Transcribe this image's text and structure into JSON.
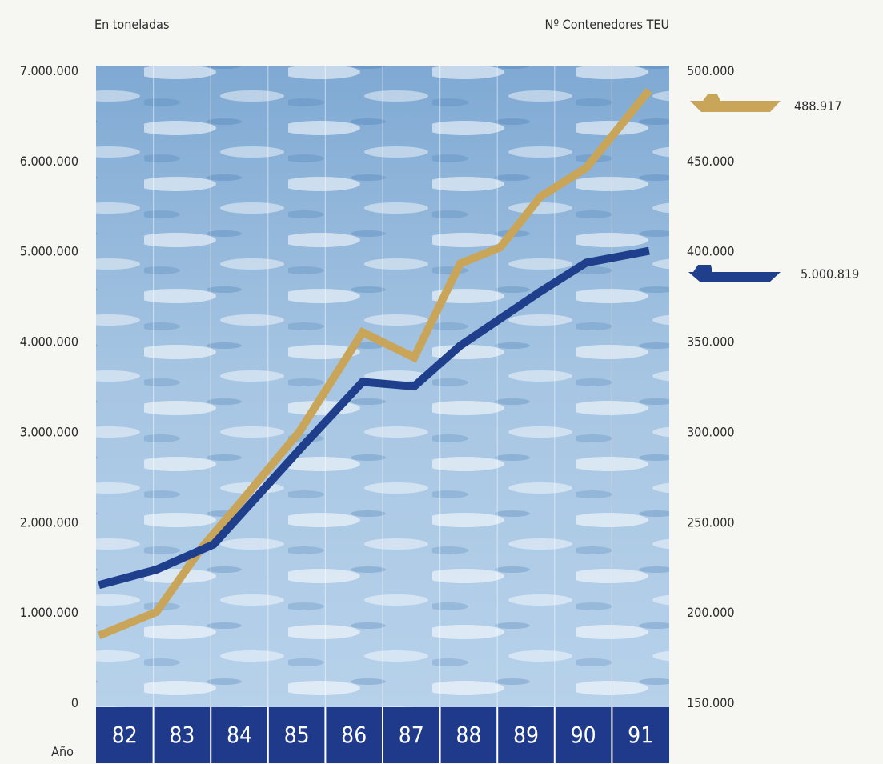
{
  "chart_data": {
    "type": "line",
    "left_axis_label": "En toneladas",
    "right_axis_label": "Nº Contenedores TEU",
    "x_label": "Año",
    "categories": [
      "82",
      "83",
      "84",
      "85",
      "86",
      "87",
      "88",
      "89",
      "90",
      "91"
    ],
    "left_ticks": [
      "7.000.000",
      "6.000.000",
      "5.000.000",
      "4.000.000",
      "3.000.000",
      "2.000.000",
      "1.000.000",
      "0"
    ],
    "right_ticks": [
      "500.000",
      "450.000",
      "400.000",
      "350.000",
      "300.000",
      "250.000",
      "200.000",
      "150.000"
    ],
    "left_ylim": [
      0,
      7000000
    ],
    "right_ylim": [
      150000,
      500000
    ],
    "series": [
      {
        "axis": "right",
        "color": "#c9a55a",
        "icon": "container-ship-icon",
        "end_label": "488.917",
        "x": [
          82,
          83,
          83.8,
          84.5,
          85.5,
          86.6,
          87.5,
          88.3,
          89,
          89.7,
          90.5,
          91.6
        ],
        "values": [
          187000,
          200000,
          236000,
          262000,
          300000,
          355000,
          341000,
          393000,
          402000,
          430000,
          446000,
          488917
        ]
      },
      {
        "axis": "left",
        "color": "#1f3f8c",
        "icon": "cargo-ship-icon",
        "end_label": "5.000.819",
        "x": [
          82,
          83,
          84,
          84.5,
          85.5,
          86.6,
          87.5,
          88.3,
          89,
          89.7,
          90.5,
          91.6
        ],
        "values": [
          1300000,
          1470000,
          1750000,
          2100000,
          2800000,
          3550000,
          3500000,
          3950000,
          4250000,
          4550000,
          4870000,
          5000819
        ]
      }
    ]
  }
}
